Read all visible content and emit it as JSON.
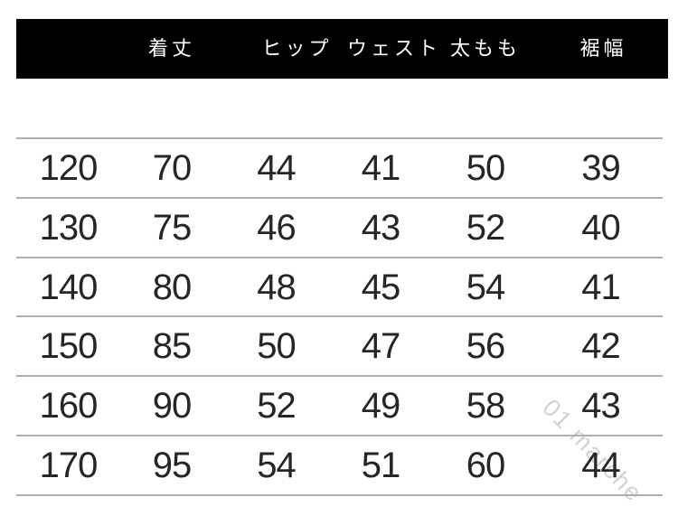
{
  "chart_data": {
    "type": "table",
    "title": "",
    "columns": [
      "",
      "着丈",
      "ヒップ",
      "ウェスト",
      "太もも",
      "裾幅"
    ],
    "rows": [
      [
        "120",
        "70",
        "44",
        "41",
        "50",
        "39"
      ],
      [
        "130",
        "75",
        "46",
        "43",
        "52",
        "40"
      ],
      [
        "140",
        "80",
        "48",
        "45",
        "54",
        "41"
      ],
      [
        "150",
        "85",
        "50",
        "47",
        "56",
        "42"
      ],
      [
        "160",
        "90",
        "52",
        "49",
        "58",
        "43"
      ],
      [
        "170",
        "95",
        "54",
        "51",
        "60",
        "44"
      ]
    ]
  },
  "watermark": "01 marche",
  "colors": {
    "header_bg": "#000000",
    "header_text": "#ffffff",
    "row_line": "#aeaeae",
    "cell_text": "#262626",
    "watermark": "#d2d2d2",
    "background": "#ffffff"
  }
}
